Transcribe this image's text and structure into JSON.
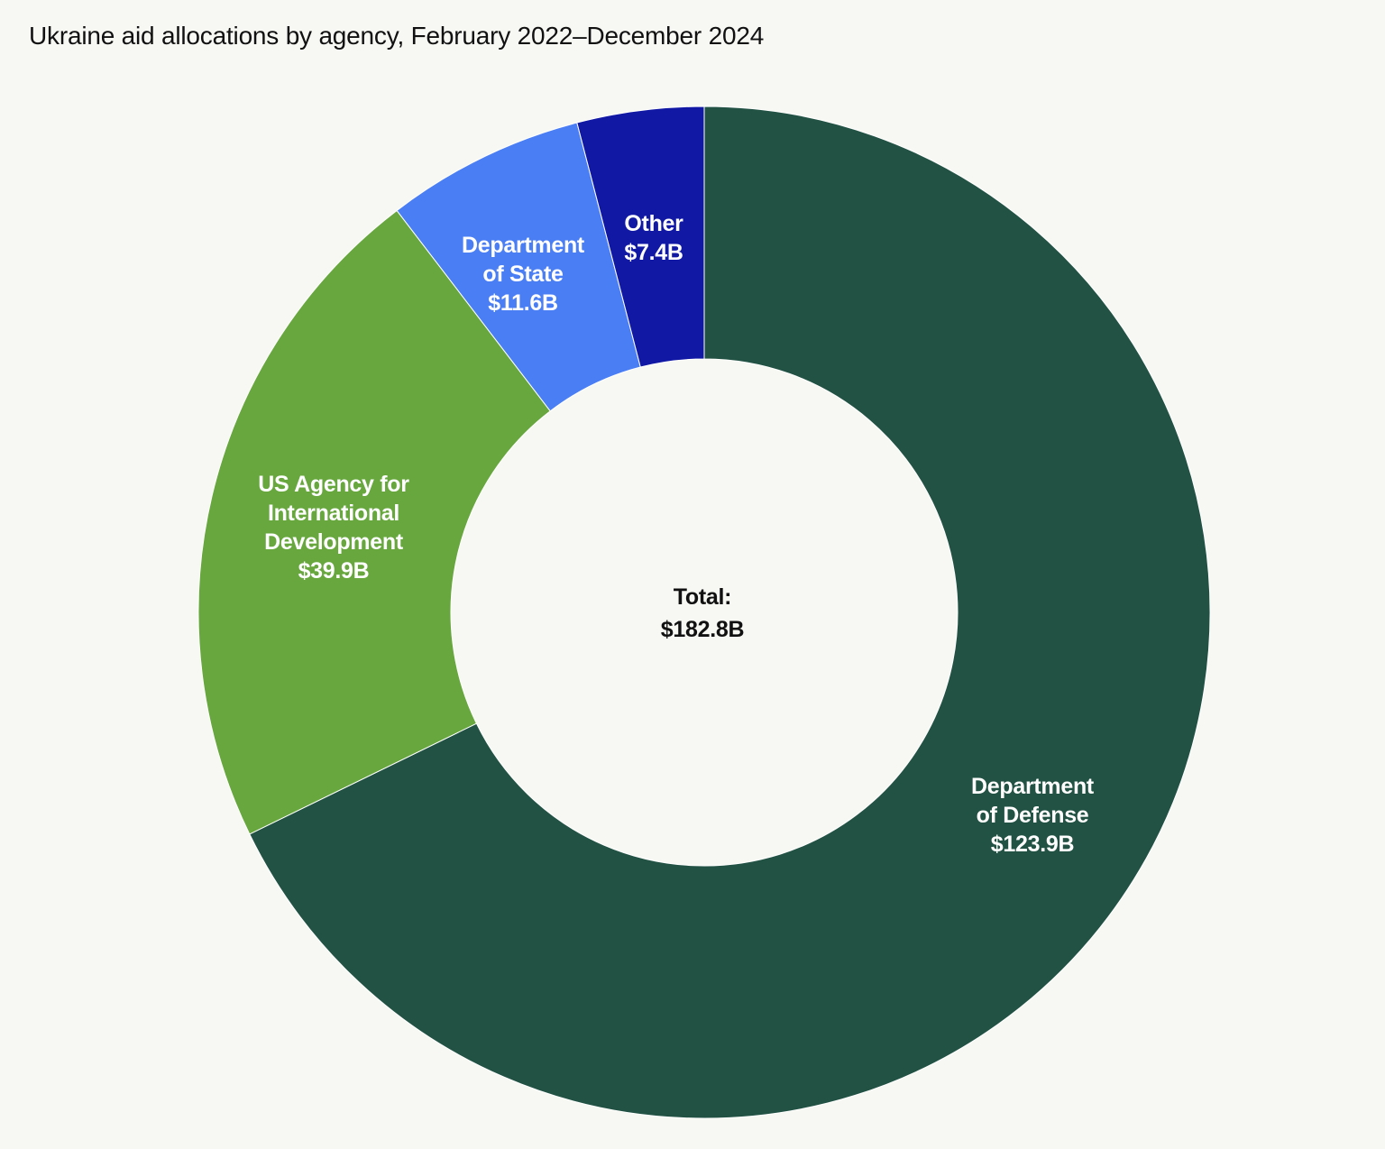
{
  "chart_data": {
    "type": "pie",
    "title": "Ukraine aid allocations by agency, February 2022–December 2024",
    "unit": "$B",
    "center_label": [
      "Total:",
      "$182.8B"
    ],
    "total": 182.8,
    "slices": [
      {
        "label_lines": [
          "Department",
          "of Defense",
          "$123.9B"
        ],
        "value": 123.9,
        "color": "#225244"
      },
      {
        "label_lines": [
          "US Agency for",
          "International",
          "Development",
          "$39.9B"
        ],
        "value": 39.9,
        "color": "#67a73e"
      },
      {
        "label_lines": [
          "Department",
          "of State",
          "$11.6B"
        ],
        "value": 11.6,
        "color": "#4a7ef5"
      },
      {
        "label_lines": [
          "Other",
          "$7.4B"
        ],
        "value": 7.4,
        "color": "#1118a4"
      }
    ]
  }
}
